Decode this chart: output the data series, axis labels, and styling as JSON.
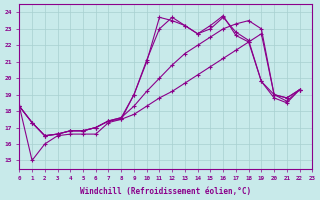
{
  "title": "",
  "xlabel": "Windchill (Refroidissement éolien,°C)",
  "ylabel": "",
  "bg_color": "#c8eaea",
  "line_color": "#8b008b",
  "grid_color": "#a8d0d0",
  "xlim": [
    0,
    23
  ],
  "ylim": [
    14.5,
    24.5
  ],
  "yticks": [
    15,
    16,
    17,
    18,
    19,
    20,
    21,
    22,
    23,
    24
  ],
  "xticks": [
    0,
    1,
    2,
    3,
    4,
    5,
    6,
    7,
    8,
    9,
    10,
    11,
    12,
    13,
    14,
    15,
    16,
    17,
    18,
    19,
    20,
    21,
    22,
    23
  ],
  "series": [
    [
      18.3,
      15.0,
      16.0,
      16.5,
      16.6,
      16.6,
      16.6,
      17.3,
      17.5,
      19.0,
      21.0,
      23.7,
      23.5,
      23.2,
      22.7,
      23.2,
      23.8,
      22.6,
      22.2,
      19.8,
      19.0,
      18.6,
      19.3
    ],
    [
      18.3,
      17.3,
      16.5,
      16.6,
      16.8,
      16.8,
      17.0,
      17.4,
      17.6,
      19.0,
      21.1,
      23.0,
      23.7,
      23.2,
      22.7,
      23.0,
      23.7,
      22.8,
      22.3,
      19.8,
      18.8,
      18.5,
      19.3
    ],
    [
      18.3,
      17.3,
      16.5,
      16.6,
      16.8,
      16.8,
      17.0,
      17.4,
      17.6,
      18.3,
      19.2,
      20.0,
      20.8,
      21.5,
      22.0,
      22.5,
      23.0,
      23.3,
      23.5,
      23.0,
      19.0,
      18.8,
      19.3
    ],
    [
      18.3,
      17.3,
      16.5,
      16.6,
      16.8,
      16.8,
      17.0,
      17.4,
      17.5,
      17.8,
      18.3,
      18.8,
      19.2,
      19.7,
      20.2,
      20.7,
      21.2,
      21.7,
      22.2,
      22.7,
      19.0,
      18.8,
      19.3
    ]
  ],
  "marker": "+",
  "markersize": 3,
  "linewidth": 0.8
}
